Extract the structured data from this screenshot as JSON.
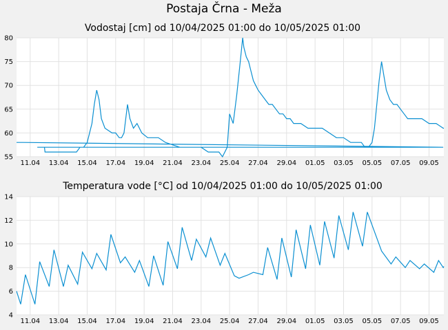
{
  "title": "Postaja Črna - Meža",
  "x_tick_labels": [
    "11.04",
    "13.04",
    "15.04",
    "17.04",
    "19.04",
    "21.04",
    "23.04",
    "25.04",
    "27.04",
    "29.04",
    "01.05",
    "03.05",
    "05.05",
    "07.05",
    "09.05"
  ],
  "colors": {
    "line": "#0a8fd1",
    "grid": "#e2e2e2",
    "background": "#f1f1f1",
    "plot_bg": "#ffffff"
  },
  "chart_data": [
    {
      "type": "line",
      "title": "Vodostaj [cm] od 10/04/2025 01:00 do 10/05/2025 01:00",
      "xlabel": "",
      "ylabel": "",
      "xlim": [
        "10/04/2025 01:00",
        "10/05/2025 01:00"
      ],
      "ylim": [
        55,
        80
      ],
      "yticks": [
        55,
        60,
        65,
        70,
        75,
        80
      ],
      "grid": true,
      "series": [
        {
          "x": [
            "10/04 01:00",
            "10/04 12:00",
            "10/05 00:00",
            "11/04 12:00",
            "12/04 00:00",
            "12/04 01:00",
            "12/04 06:00",
            "13/04 12:00",
            "14/04 06:00",
            "14/04 12:00",
            "14/04 18:00",
            "15/04 00:00",
            "15/04 08:00",
            "15/04 12:00",
            "15/04 16:00",
            "15/04 20:00",
            "16/04 00:00",
            "16/04 06:00",
            "16/04 18:00",
            "17/04 00:00",
            "17/04 06:00",
            "17/04 10:00",
            "17/04 14:00",
            "17/04 20:00",
            "18/04 00:00",
            "18/04 06:00",
            "18/04 12:00",
            "18/04 20:00",
            "19/04 06:00",
            "20/04 00:00",
            "20/04 12:00",
            "21/04 12:00",
            "22/04 00:00",
            "22/04 12:00",
            "23/04 00:00",
            "23/04 12:00",
            "24/04 00:00",
            "24/04 06:00",
            "24/04 12:00",
            "24/04 20:00",
            "25/04 00:00",
            "25/04 06:00",
            "25/04 12:00",
            "25/04 18:00",
            "25/04 22:00",
            "26/04 00:00",
            "26/04 04:00",
            "26/04 08:00",
            "26/04 12:00",
            "26/04 16:00",
            "26/04 20:00",
            "27/04 00:00",
            "27/04 06:00",
            "27/04 12:00",
            "27/04 18:00",
            "28/04 00:00",
            "28/04 06:00",
            "28/04 12:00",
            "28/04 18:00",
            "29/04 00:00",
            "29/04 06:00",
            "29/04 12:00",
            "29/04 18:00",
            "30/04 00:00",
            "30/04 12:00",
            "01/05 00:00",
            "01/05 12:00",
            "02/05 00:00",
            "02/05 12:00",
            "03/05 00:00",
            "03/05 12:00",
            "04/05 00:00",
            "04/05 06:00",
            "04/05 12:00",
            "04/05 18:00",
            "05/05 00:00",
            "05/05 04:00",
            "05/05 08:00",
            "05/05 12:00",
            "05/05 16:00",
            "05/05 20:00",
            "06/05 00:00",
            "06/05 06:00",
            "06/05 12:00",
            "06/05 18:00",
            "07/05 00:00",
            "07/05 06:00",
            "07/05 12:00",
            "08/05 00:00",
            "08/05 12:00",
            "09/05 00:00",
            "09/05 06:00",
            "09/05 12:00",
            "10/05 00:00",
            "10/05 01:00"
          ],
          "y": [
            58,
            58,
            57,
            57,
            57,
            56,
            56,
            56,
            56,
            57,
            57,
            58,
            62,
            66,
            69,
            67,
            63,
            61,
            60,
            60,
            59,
            59,
            60,
            66,
            63,
            61,
            62,
            60,
            59,
            59,
            58,
            57,
            57,
            57,
            57,
            56,
            56,
            56,
            55,
            57,
            64,
            62,
            68,
            75,
            80,
            78,
            76,
            75,
            73,
            71,
            70,
            69,
            68,
            67,
            66,
            66,
            65,
            64,
            64,
            63,
            63,
            62,
            62,
            62,
            61,
            61,
            61,
            60,
            59,
            59,
            58,
            58,
            58,
            57,
            57,
            58,
            61,
            66,
            71,
            75,
            72,
            69,
            67,
            66,
            66,
            65,
            64,
            63,
            63,
            63,
            62,
            62,
            62,
            61,
            61
          ]
        }
      ]
    },
    {
      "type": "line",
      "title": "Temperatura vode [°C] od 10/04/2025 01:00 do 10/05/2025 01:00",
      "xlabel": "",
      "ylabel": "",
      "xlim": [
        "10/04/2025 01:00",
        "10/05/2025 01:00"
      ],
      "ylim": [
        4,
        14
      ],
      "yticks": [
        4,
        6,
        8,
        10,
        12,
        14
      ],
      "grid": true,
      "series": [
        {
          "x": [
            "10/04 01:00",
            "10/04 08:00",
            "10/04 16:00",
            "11/04 08:00",
            "11/04 16:00",
            "12/04 08:00",
            "12/04 16:00",
            "13/04 08:00",
            "13/04 16:00",
            "14/04 08:00",
            "14/04 16:00",
            "15/04 08:00",
            "15/04 16:00",
            "16/04 08:00",
            "16/04 16:00",
            "17/04 08:00",
            "17/04 16:00",
            "18/04 08:00",
            "18/04 16:00",
            "19/04 08:00",
            "19/04 16:00",
            "20/04 08:00",
            "20/04 16:00",
            "21/04 08:00",
            "21/04 16:00",
            "22/04 08:00",
            "22/04 16:00",
            "23/04 08:00",
            "23/04 16:00",
            "24/04 08:00",
            "24/04 16:00",
            "25/04 08:00",
            "25/04 16:00",
            "26/04 08:00",
            "26/04 16:00",
            "27/04 08:00",
            "27/04 16:00",
            "28/04 08:00",
            "28/04 16:00",
            "29/04 08:00",
            "29/04 16:00",
            "30/04 08:00",
            "30/04 16:00",
            "01/05 08:00",
            "01/05 16:00",
            "02/05 08:00",
            "02/05 16:00",
            "03/05 08:00",
            "03/05 16:00",
            "04/05 08:00",
            "04/05 16:00",
            "05/05 08:00",
            "05/05 16:00",
            "06/05 08:00",
            "06/05 16:00",
            "07/05 08:00",
            "07/05 16:00",
            "08/05 08:00",
            "08/05 16:00",
            "09/05 08:00",
            "09/05 16:00",
            "10/05 00:00",
            "10/05 01:00"
          ],
          "y": [
            6.0,
            4.9,
            7.4,
            4.9,
            8.5,
            6.4,
            9.5,
            6.4,
            8.2,
            6.6,
            9.3,
            7.9,
            9.2,
            7.8,
            10.8,
            8.4,
            8.9,
            7.6,
            8.6,
            6.4,
            9.0,
            6.5,
            10.2,
            7.9,
            11.4,
            8.6,
            10.4,
            8.9,
            10.5,
            8.2,
            9.2,
            7.3,
            7.1,
            7.4,
            7.6,
            7.4,
            9.7,
            7.0,
            10.5,
            7.2,
            11.2,
            7.9,
            11.6,
            8.2,
            11.9,
            8.8,
            12.4,
            9.5,
            12.7,
            9.8,
            12.7,
            10.5,
            9.4,
            8.3,
            8.9,
            8.0,
            8.6,
            7.9,
            8.3,
            7.6,
            8.6,
            8.0,
            8.1
          ]
        }
      ]
    }
  ]
}
